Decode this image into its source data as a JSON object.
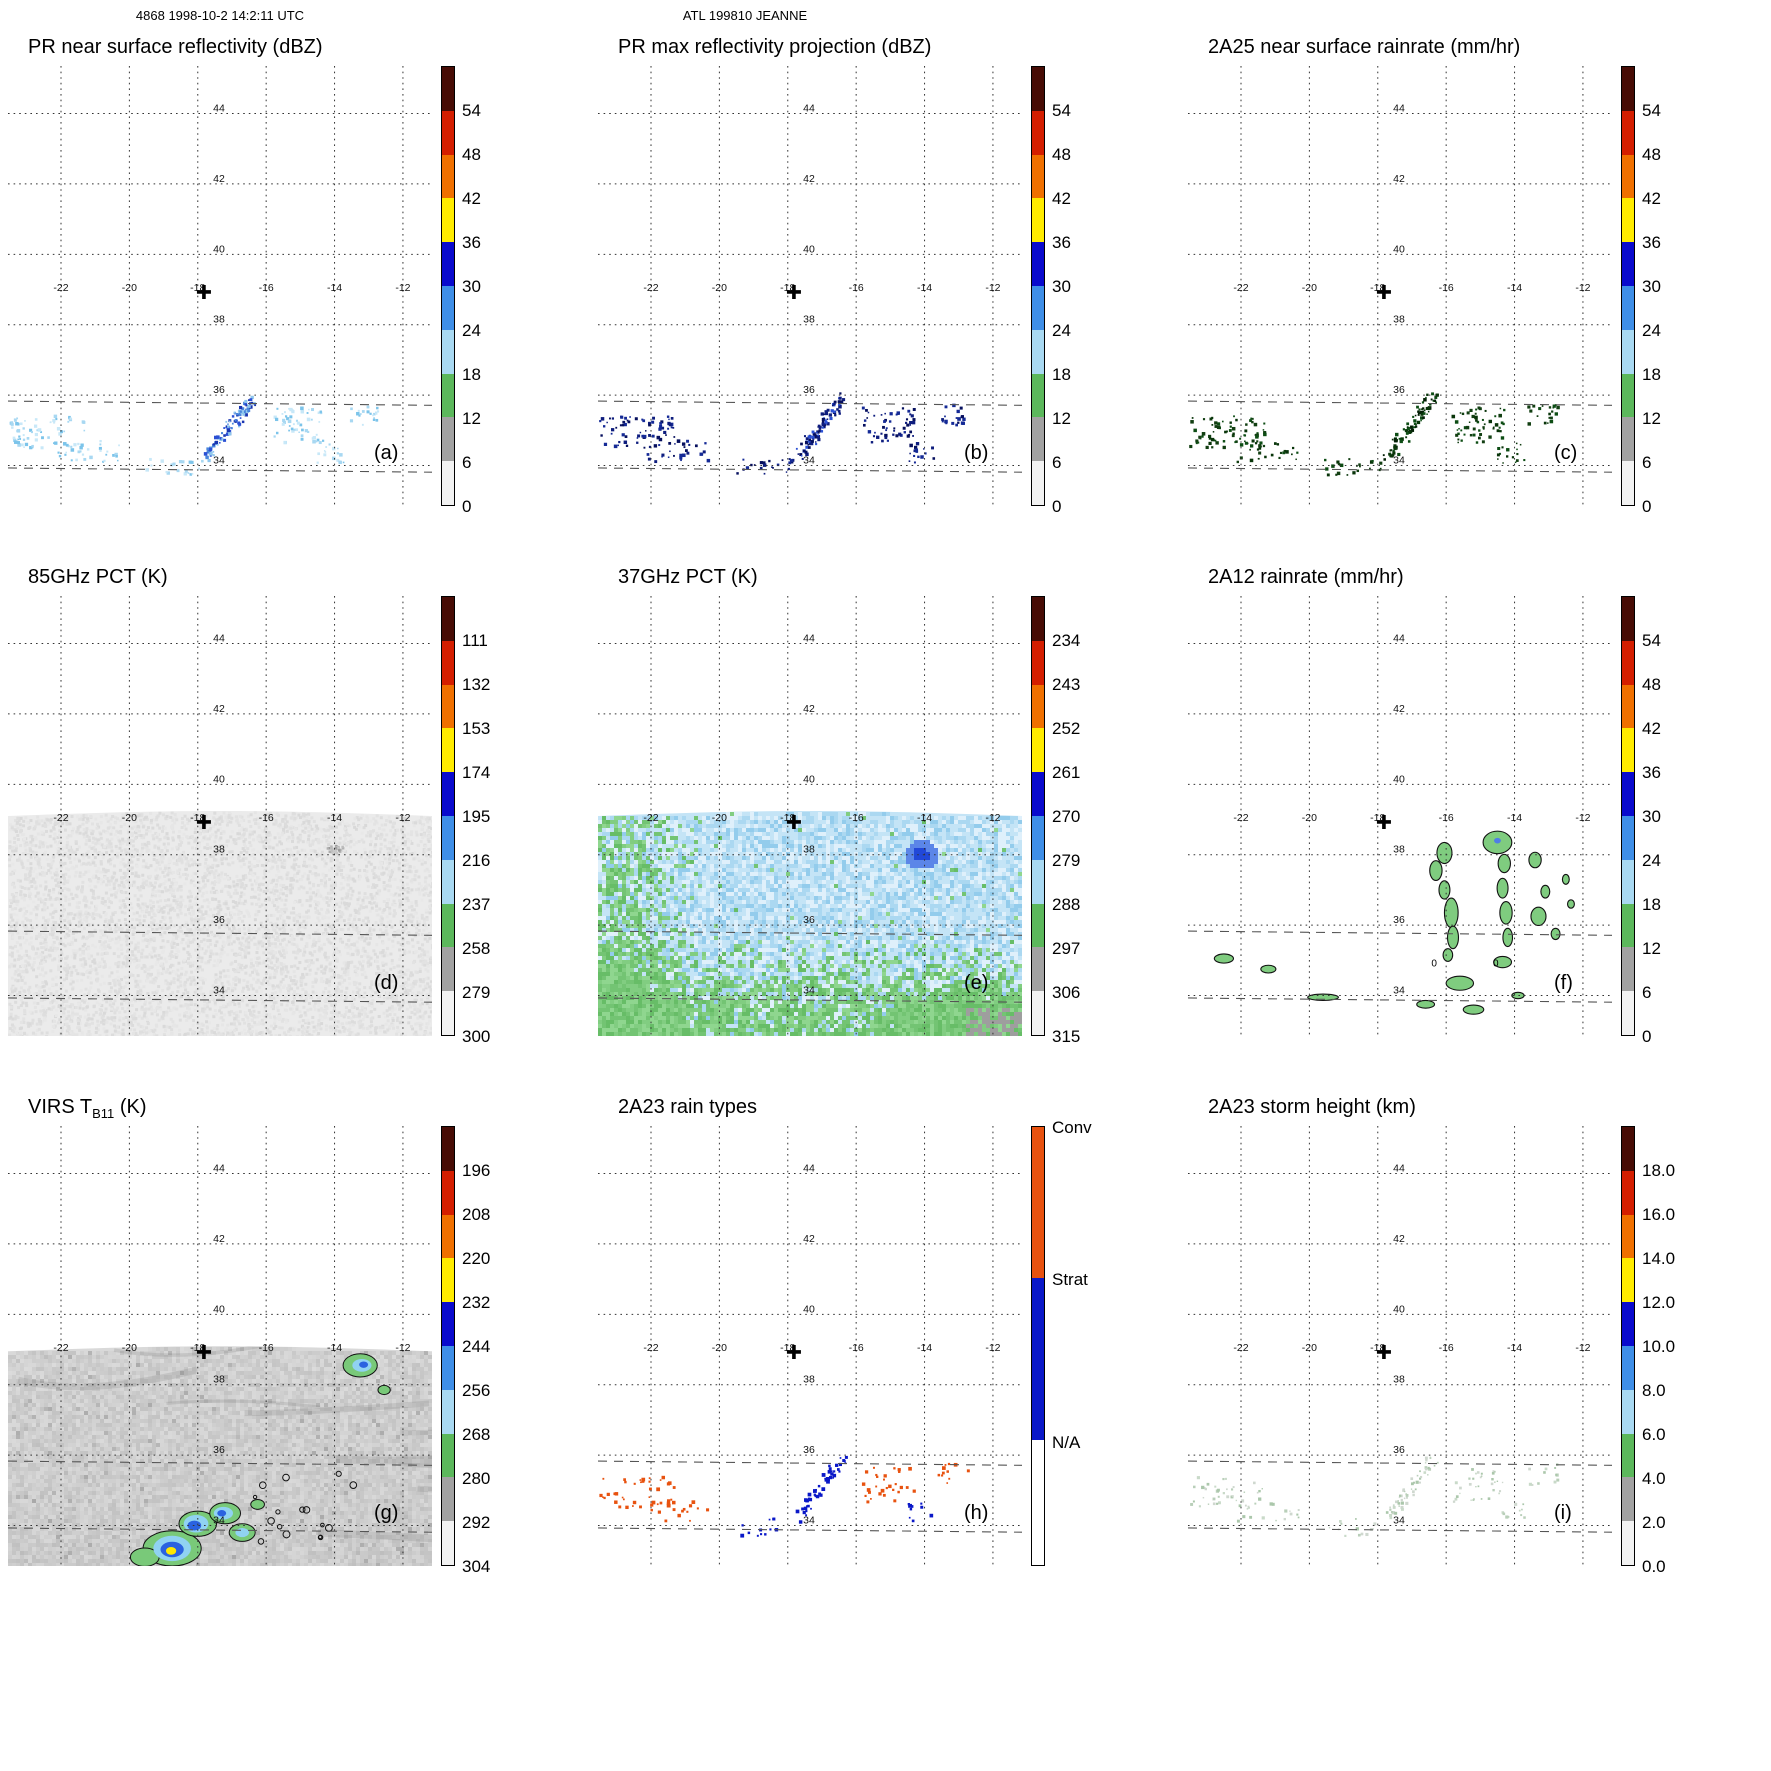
{
  "header": {
    "left_title": "4868 1998-10-2 14:2:11 UTC",
    "center_title": "ATL 199810 JEANNE"
  },
  "chart_data": {
    "type": "heatmap",
    "figure": "3x3 grid of TRMM satellite map panels for storm JEANNE",
    "axes": {
      "lon_ticks": [
        -22,
        -20,
        -18,
        -16,
        -14,
        -12
      ],
      "lat_ticks": [
        34,
        36,
        38,
        40,
        42,
        44
      ],
      "lon_min": -23.55,
      "lon_max": -11.15,
      "lat_min": 32.85,
      "lat_max": 45.35,
      "lat_label_lon": -17.55,
      "lon_label_lat": 39.05,
      "marker": {
        "lon": -17.82,
        "lat": 38.93
      },
      "swath_lats": [
        35.78,
        33.88
      ],
      "swath_top_lat": 39.1,
      "virs_top_lat": 38.95
    },
    "colorbars": {
      "scale_colors": [
        "#470c05",
        "#d41e00",
        "#f07000",
        "#ffec00",
        "#0a0acd",
        "#3f8fe8",
        "#a9d9f2",
        "#5cb85c",
        "#a2a2a2",
        "#f2f2f2"
      ],
      "dbz": {
        "ticks": [
          "54",
          "48",
          "42",
          "36",
          "30",
          "24",
          "18",
          "12",
          "6",
          "0"
        ]
      },
      "pct85": {
        "ticks": [
          "111",
          "132",
          "153",
          "174",
          "195",
          "216",
          "237",
          "258",
          "279",
          "300"
        ]
      },
      "pct37": {
        "ticks": [
          "234",
          "243",
          "252",
          "261",
          "270",
          "279",
          "288",
          "297",
          "306",
          "315"
        ]
      },
      "virs": {
        "ticks": [
          "196",
          "208",
          "220",
          "232",
          "244",
          "256",
          "268",
          "280",
          "292",
          "304"
        ]
      },
      "height": {
        "ticks": [
          "18.0",
          "16.0",
          "14.0",
          "12.0",
          "10.0",
          "8.0",
          "6.0",
          "4.0",
          "2.0",
          "0.0"
        ]
      },
      "raintypes": {
        "segments": [
          {
            "label": "Conv",
            "color": "#e8520f",
            "frac": 0.345
          },
          {
            "label": "Strat",
            "color": "#0a18c8",
            "frac": 0.37
          },
          {
            "label": "N/A",
            "color": "#ffffff",
            "frac": 0.285
          }
        ]
      }
    },
    "speckle_groups": [
      {
        "name": "left-cluster",
        "lon": -22.4,
        "lat": 34.95,
        "dlon": 1.1,
        "dlat": 0.45,
        "n": 70
      },
      {
        "name": "left-tail",
        "lon": -21.2,
        "lat": 34.4,
        "dlon": 0.9,
        "dlat": 0.3,
        "n": 28
      },
      {
        "name": "mid-streak",
        "line": [
          [
            -17.7,
            34.25
          ],
          [
            -16.35,
            35.95
          ]
        ],
        "w": 0.16,
        "n": 95
      },
      {
        "name": "mid-dots",
        "lon": -18.7,
        "lat": 33.95,
        "dlon": 0.85,
        "dlat": 0.25,
        "n": 22
      },
      {
        "name": "right-cluster",
        "lon": -15.05,
        "lat": 35.15,
        "dlon": 0.75,
        "dlat": 0.5,
        "n": 55
      },
      {
        "name": "right-small",
        "lon": -13.15,
        "lat": 35.45,
        "dlon": 0.45,
        "dlat": 0.3,
        "n": 20
      },
      {
        "name": "right-mid",
        "lon": -14.1,
        "lat": 34.35,
        "dlon": 0.4,
        "dlat": 0.28,
        "n": 16
      }
    ],
    "speckle_palettes": {
      "a": {
        "default": [
          "#a8d8f2",
          "#7cc4ea",
          "#c8e8f8"
        ],
        "mid-streak": [
          "#2b50d4",
          "#4a86dc",
          "#8ec6ec",
          "#1a35b0"
        ]
      },
      "b": {
        "default": [
          "#0e1d7e",
          "#152a96",
          "#060f5e"
        ],
        "mid-streak": [
          "#060f5e",
          "#0e1d7e",
          "#2b50d4"
        ]
      },
      "c": {
        "default": [
          "#0d4d14",
          "#083409",
          "#123f12"
        ],
        "mid-streak": [
          "#083409",
          "#0d4d14",
          "#031f05"
        ]
      },
      "h": {
        "left-cluster": [
          "#e8520f"
        ],
        "left-tail": [
          "#e8520f"
        ],
        "mid-streak": [
          "#0a18c8"
        ],
        "mid-dots": [
          "#0a18c8"
        ],
        "right-cluster": [
          "#e8520f"
        ],
        "right-small": [
          "#e8520f"
        ],
        "right-mid": [
          "#0a18c8"
        ]
      },
      "i": {
        "default": [
          "#b9cfb9",
          "#c9dac9",
          "#abc7ab",
          "#cfd8cf"
        ]
      }
    },
    "fields": {
      "d_85": {
        "base": "#ebebeb",
        "spot": {
          "lon": -14.0,
          "lat": 38.2
        }
      },
      "e_37": {
        "greens": [
          "#73c473",
          "#81cd81",
          "#8fd68f",
          "#67bd67"
        ],
        "blues": [
          "#dff0fb",
          "#c4e4f6",
          "#abd8f1",
          "#93ccec"
        ],
        "gray": "#9e9e9e",
        "blob": {
          "lon": -14.15,
          "lat": 38.05,
          "rlon": 0.5,
          "rlat": 0.4
        },
        "blob_core": "#2248d8",
        "blob_edge": "#5b86e8"
      },
      "f_2a12": {
        "fill": "#7fcc7f",
        "stroke": "#111111",
        "contour_label": "0",
        "label_points": [
          [
            -16.35,
            34.82
          ],
          [
            -14.55,
            34.82
          ]
        ],
        "blue_center": [
          -14.5,
          38.4,
          0.1,
          0.08
        ],
        "blue_color": "#4f7ee6",
        "blobs": [
          [
            -16.05,
            38.05,
            0.22,
            0.3
          ],
          [
            -16.3,
            37.55,
            0.18,
            0.28
          ],
          [
            -16.05,
            37.0,
            0.16,
            0.26
          ],
          [
            -15.85,
            36.35,
            0.2,
            0.42
          ],
          [
            -15.8,
            35.65,
            0.16,
            0.32
          ],
          [
            -15.95,
            35.15,
            0.14,
            0.18
          ],
          [
            -14.5,
            38.35,
            0.42,
            0.32
          ],
          [
            -14.3,
            37.75,
            0.18,
            0.26
          ],
          [
            -14.35,
            37.05,
            0.16,
            0.28
          ],
          [
            -14.25,
            36.35,
            0.18,
            0.32
          ],
          [
            -14.2,
            35.65,
            0.14,
            0.26
          ],
          [
            -14.35,
            34.95,
            0.26,
            0.16
          ],
          [
            -13.4,
            37.85,
            0.18,
            0.22
          ],
          [
            -13.1,
            36.95,
            0.13,
            0.18
          ],
          [
            -13.3,
            36.25,
            0.22,
            0.26
          ],
          [
            -12.8,
            35.75,
            0.13,
            0.16
          ],
          [
            -12.5,
            37.3,
            0.1,
            0.14
          ],
          [
            -12.35,
            36.6,
            0.1,
            0.12
          ],
          [
            -22.5,
            35.05,
            0.28,
            0.13
          ],
          [
            -21.2,
            34.75,
            0.22,
            0.11
          ],
          [
            -19.6,
            33.95,
            0.45,
            0.09
          ],
          [
            -16.6,
            33.75,
            0.26,
            0.11
          ],
          [
            -15.2,
            33.6,
            0.3,
            0.13
          ],
          [
            -15.6,
            34.35,
            0.4,
            0.2
          ],
          [
            -13.9,
            34.0,
            0.18,
            0.09
          ]
        ]
      },
      "g_virs": {
        "colors": {
          "green": "#79c979",
          "cyan": "#90d2f2",
          "blue": "#2b62e0",
          "yellow": "#ffe800"
        },
        "speck_count": 16,
        "blobs": [
          [
            -18.75,
            33.35,
            0.85,
            0.5,
            "green"
          ],
          [
            -18.0,
            34.05,
            0.55,
            0.36,
            "green"
          ],
          [
            -17.2,
            34.35,
            0.45,
            0.3,
            "green"
          ],
          [
            -19.55,
            33.1,
            0.42,
            0.26,
            "green"
          ],
          [
            -16.7,
            33.8,
            0.38,
            0.25,
            "green"
          ],
          [
            -16.25,
            34.6,
            0.2,
            0.14,
            "green"
          ],
          [
            -18.75,
            33.35,
            0.55,
            0.36,
            "cyan"
          ],
          [
            -18.05,
            34.05,
            0.36,
            0.25,
            "cyan"
          ],
          [
            -17.25,
            34.35,
            0.28,
            0.18,
            "cyan"
          ],
          [
            -16.7,
            33.8,
            0.2,
            0.13,
            "cyan"
          ],
          [
            -18.75,
            33.32,
            0.34,
            0.22,
            "blue"
          ],
          [
            -18.1,
            34.0,
            0.2,
            0.14,
            "blue"
          ],
          [
            -17.3,
            34.35,
            0.13,
            0.09,
            "blue"
          ],
          [
            -18.78,
            33.28,
            0.15,
            0.11,
            "yellow"
          ],
          [
            -13.25,
            38.55,
            0.5,
            0.33,
            "green"
          ],
          [
            -13.2,
            38.55,
            0.28,
            0.18,
            "cyan"
          ],
          [
            -13.15,
            38.57,
            0.13,
            0.09,
            "blue"
          ],
          [
            -12.55,
            37.85,
            0.18,
            0.13,
            "green"
          ]
        ]
      }
    },
    "panels": [
      {
        "id": "a",
        "letter": "(a)",
        "title": "PR near surface reflectivity (dBZ)",
        "colorbar": "dbz",
        "field": {
          "type": "speckles",
          "palette_key": "a"
        }
      },
      {
        "id": "b",
        "letter": "(b)",
        "title": "PR max reflectivity projection (dBZ)",
        "colorbar": "dbz",
        "field": {
          "type": "speckles",
          "palette_key": "b"
        }
      },
      {
        "id": "c",
        "letter": "(c)",
        "title": "2A25 near surface rainrate (mm/hr)",
        "colorbar": "dbz",
        "field": {
          "type": "speckles",
          "palette_key": "c"
        }
      },
      {
        "id": "d",
        "letter": "(d)",
        "title": "85GHz PCT (K)",
        "colorbar": "pct85",
        "field": {
          "type": "swath85"
        }
      },
      {
        "id": "e",
        "letter": "(e)",
        "title": "37GHz PCT (K)",
        "colorbar": "pct37",
        "field": {
          "type": "swath37"
        }
      },
      {
        "id": "f",
        "letter": "(f)",
        "title": "2A12 rainrate (mm/hr)",
        "colorbar": "dbz",
        "field": {
          "type": "blobs2a12"
        }
      },
      {
        "id": "g",
        "letter": "(g)",
        "title": "VIRS TB11 (K)",
        "title_parts": {
          "pre": "VIRS T",
          "sub": "B11",
          "post": " (K)"
        },
        "colorbar": "virs",
        "field": {
          "type": "swathvirs"
        }
      },
      {
        "id": "h",
        "letter": "(h)",
        "title": "2A23 rain types",
        "colorbar": "raintypes",
        "field": {
          "type": "speckles",
          "palette_key": "h",
          "n_scale": 0.55,
          "size": 2.6
        }
      },
      {
        "id": "i",
        "letter": "(i)",
        "title": "2A23 storm height (km)",
        "colorbar": "height",
        "field": {
          "type": "speckles",
          "palette_key": "i",
          "n_scale": 0.6,
          "size": 2.2
        }
      }
    ]
  }
}
